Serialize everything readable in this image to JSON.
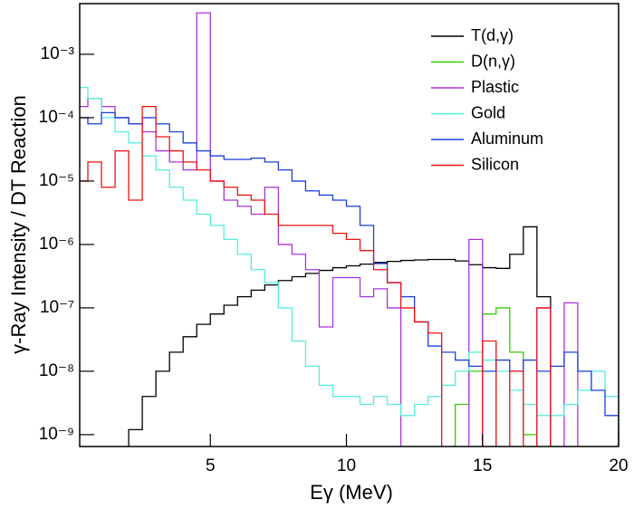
{
  "chart_data": {
    "type": "line",
    "x_label": "Eγ (MeV)",
    "y_label": "γ-Ray Intensity / DT Reaction",
    "log_y": true,
    "legend": "top-right",
    "xlim": [
      0.2,
      20
    ],
    "xticks": [
      5,
      10,
      15,
      20
    ],
    "ylim": [
      6.5e-10,
      0.0063
    ],
    "yticks": [
      {
        "value": 1e-09,
        "label": "10⁻⁹"
      },
      {
        "value": 1e-08,
        "label": "10⁻⁸"
      },
      {
        "value": 1e-07,
        "label": "10⁻⁷"
      },
      {
        "value": 1e-06,
        "label": "10⁻⁶"
      },
      {
        "value": 1e-05,
        "label": "10⁻⁵"
      },
      {
        "value": 0.0001,
        "label": "10⁻⁴"
      },
      {
        "value": 0.001,
        "label": "10⁻³"
      }
    ],
    "x": [
      0.25,
      0.75,
      1.25,
      1.75,
      2.25,
      2.75,
      3.25,
      3.75,
      4.25,
      4.75,
      5.25,
      5.75,
      6.25,
      6.75,
      7.25,
      7.75,
      8.25,
      8.75,
      9.25,
      9.75,
      10.25,
      10.75,
      11.25,
      11.75,
      12.25,
      12.75,
      13.25,
      13.75,
      14.25,
      14.75,
      15.25,
      15.75,
      16.25,
      16.75,
      17.25,
      17.75,
      18.25,
      18.75,
      19.25,
      19.75
    ],
    "series": [
      {
        "name": "T(d,γ)",
        "color": "#000000",
        "values": [
          null,
          null,
          null,
          null,
          1.2e-09,
          4e-09,
          1e-08,
          2e-08,
          3.5e-08,
          5.5e-08,
          8e-08,
          1.1e-07,
          1.5e-07,
          1.9e-07,
          2.3e-07,
          2.7e-07,
          3.1e-07,
          3.5e-07,
          3.9e-07,
          4.3e-07,
          4.6e-07,
          4.9e-07,
          5.2e-07,
          5.4e-07,
          5.6e-07,
          5.7e-07,
          5.8e-07,
          5.8e-07,
          5.5e-07,
          4.8e-07,
          4.3e-07,
          4.2e-07,
          7e-07,
          1.9e-06,
          1.5e-07,
          null,
          null,
          null,
          null,
          null
        ]
      },
      {
        "name": "D(n,γ)",
        "color": "#33cc00",
        "values": [
          null,
          null,
          null,
          null,
          null,
          null,
          null,
          null,
          null,
          null,
          null,
          null,
          null,
          null,
          null,
          null,
          null,
          null,
          null,
          null,
          null,
          null,
          null,
          null,
          null,
          null,
          null,
          null,
          3e-09,
          1e-08,
          8e-08,
          1e-07,
          2e-08,
          1e-09,
          null,
          null,
          null,
          null,
          null,
          null
        ]
      },
      {
        "name": "Plastic",
        "color": "#aa33dd",
        "values": [
          0.00015,
          0.0002,
          0.00015,
          0.0001,
          8e-05,
          6e-05,
          3e-05,
          2e-05,
          1.5e-05,
          0.0045,
          1e-05,
          5e-06,
          4e-06,
          3e-06,
          8e-06,
          1e-06,
          7e-07,
          4e-07,
          5e-08,
          3e-07,
          3e-07,
          1.5e-07,
          2e-07,
          1e-07,
          null,
          null,
          null,
          null,
          null,
          1.2e-06,
          null,
          null,
          null,
          null,
          1e-07,
          null,
          1.2e-07,
          null,
          null,
          null
        ]
      },
      {
        "name": "Gold",
        "color": "#55eedd",
        "values": [
          0.0003,
          0.0002,
          0.0001,
          6e-05,
          4e-05,
          2.5e-05,
          1.5e-05,
          8e-06,
          5e-06,
          3e-06,
          2e-06,
          1.2e-06,
          7e-07,
          4e-07,
          2.5e-07,
          1e-07,
          3e-08,
          1.2e-08,
          6e-09,
          4e-09,
          4e-09,
          3e-09,
          4e-09,
          3e-09,
          2e-09,
          3e-09,
          4e-09,
          6e-09,
          1e-08,
          2e-08,
          1.5e-08,
          1e-08,
          5e-09,
          3e-09,
          2e-09,
          2e-09,
          3e-09,
          5e-09,
          1e-08,
          4e-09
        ]
      },
      {
        "name": "Aluminum",
        "color": "#1a3fdd",
        "values": [
          0.0001,
          8e-05,
          0.00012,
          0.0001,
          8e-05,
          0.0001,
          8e-05,
          6e-05,
          4e-05,
          3e-05,
          2.5e-05,
          2.2e-05,
          2.2e-05,
          2.3e-05,
          2e-05,
          1.5e-05,
          1e-05,
          7e-06,
          6e-06,
          5e-06,
          4e-06,
          2e-06,
          5e-07,
          2.5e-07,
          1.5e-07,
          6e-08,
          2.5e-08,
          2e-08,
          1.5e-08,
          1.2e-08,
          1e-08,
          1.5e-08,
          1e-08,
          1.5e-08,
          1e-08,
          1.2e-08,
          2e-08,
          1e-08,
          5e-09,
          2e-09
        ]
      },
      {
        "name": "Silicon",
        "color": "#ee1111",
        "values": [
          1e-05,
          2e-05,
          8e-06,
          3e-05,
          5e-06,
          0.00015,
          5e-05,
          3e-05,
          2e-05,
          1.5e-05,
          1e-05,
          8e-06,
          6e-06,
          5e-06,
          3e-06,
          2e-06,
          2e-06,
          2e-06,
          2e-06,
          1.5e-06,
          1.2e-06,
          8e-07,
          4e-07,
          2.5e-07,
          1e-07,
          6e-08,
          4e-08,
          null,
          null,
          null,
          3e-08,
          null,
          1e-08,
          null,
          1e-07,
          null,
          null,
          null,
          null,
          null
        ]
      }
    ]
  }
}
